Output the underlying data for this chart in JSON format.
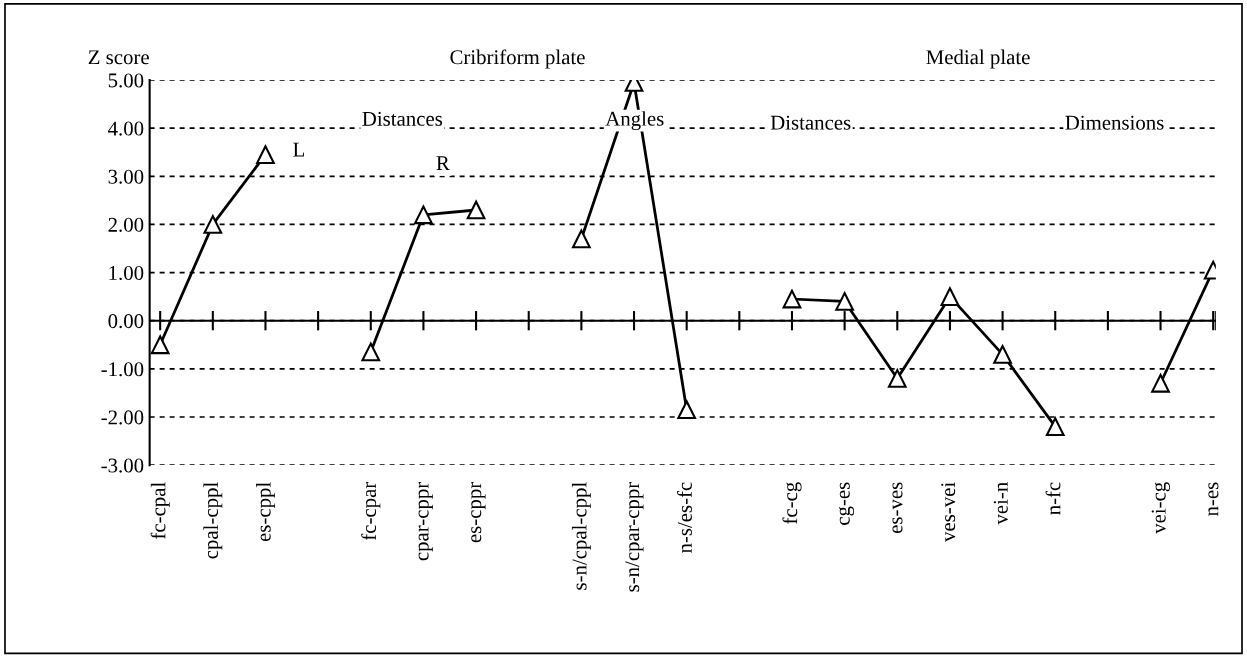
{
  "chart_data": {
    "type": "line",
    "ylabel": "Z score",
    "categories": [
      "fc-cpal",
      "cpal-cppl",
      "es-cppl",
      null,
      "fc-cpar",
      "cpar-cppr",
      "es-cppr",
      null,
      "s-n/cpal-cppl",
      "s-n/cpar-cppr",
      "n-s/es-fc",
      null,
      "fc-cg",
      "cg-es",
      "es-ves",
      "ves-vei",
      "vei-n",
      "n-fc",
      null,
      "vei-cg",
      "n-es"
    ],
    "series": [
      {
        "color": "#000000",
        "values": [
          -0.5,
          2.0,
          3.45,
          null,
          -0.65,
          2.2,
          2.3,
          null,
          1.7,
          4.95,
          -1.85,
          null,
          0.45,
          0.4,
          -1.2,
          0.5,
          -0.7,
          -2.2,
          null,
          -1.3,
          1.05
        ]
      }
    ],
    "ylim": [
      -3,
      5
    ],
    "yticks": [
      {
        "value": -3,
        "label": "-3.00"
      },
      {
        "value": -2,
        "label": "-2.00"
      },
      {
        "value": -1,
        "label": "-1.00"
      },
      {
        "value": 0,
        "label": "0.00"
      },
      {
        "value": 1,
        "label": "1.00"
      },
      {
        "value": 2,
        "label": "2.00"
      },
      {
        "value": 3,
        "label": "3.00"
      },
      {
        "value": 4,
        "label": "4.00"
      },
      {
        "value": 5,
        "label": "5.00"
      }
    ],
    "ref_lines": [
      {
        "axis": "y",
        "value": 0,
        "color": "#000000",
        "line_style": "solid"
      }
    ],
    "grid": "y",
    "marker": "triangle",
    "line_style": "solid",
    "legend": false,
    "annotations": [
      "Cribriform plate",
      "Medial plate",
      "Distances",
      "Angles",
      "Distances",
      "Dimensions",
      "L",
      "R"
    ]
  }
}
